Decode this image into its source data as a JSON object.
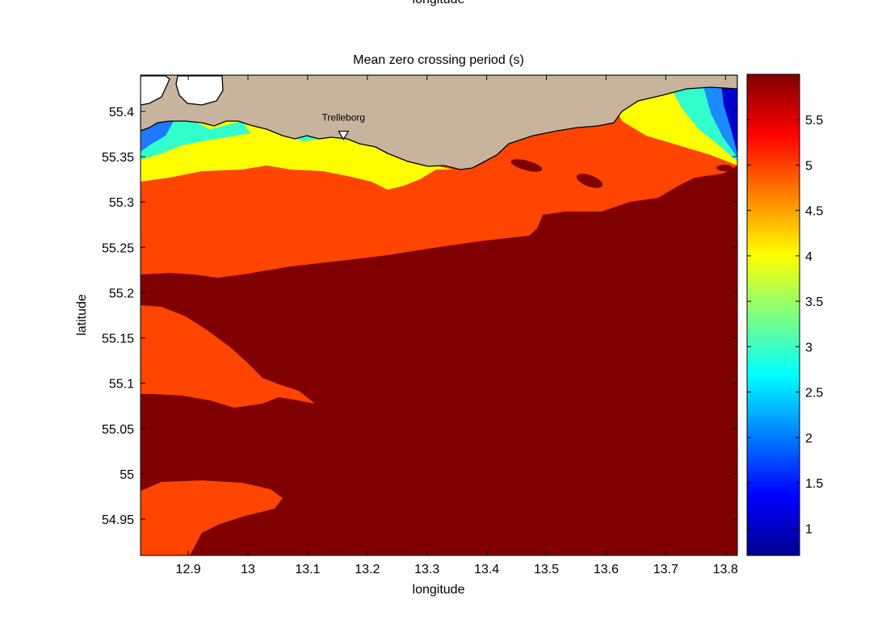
{
  "top_clipped_label": "longitude",
  "chart_data": {
    "type": "heatmap",
    "title": "Mean zero crossing period (s)",
    "xlabel": "longitude",
    "ylabel": "latitude",
    "xlim": [
      12.82,
      13.82
    ],
    "ylim": [
      54.91,
      55.44
    ],
    "x_ticks": [
      12.9,
      13,
      13.1,
      13.2,
      13.3,
      13.4,
      13.5,
      13.6,
      13.7,
      13.8
    ],
    "x_tick_labels": [
      "12.9",
      "13",
      "13.1",
      "13.2",
      "13.3",
      "13.4",
      "13.5",
      "13.6",
      "13.7",
      "13.8"
    ],
    "y_ticks": [
      54.95,
      55,
      55.05,
      55.1,
      55.15,
      55.2,
      55.25,
      55.3,
      55.35,
      55.4
    ],
    "y_tick_labels": [
      "54.95",
      "55",
      "55.05",
      "55.1",
      "55.15",
      "55.2",
      "55.25",
      "55.3",
      "55.35",
      "55.4"
    ],
    "grid": false,
    "colorbar": {
      "range": [
        0.7,
        6.0
      ],
      "ticks": [
        1,
        1.5,
        2,
        2.5,
        3,
        3.5,
        4,
        4.5,
        5,
        5.5
      ],
      "tick_labels": [
        "1",
        "1.5",
        "2",
        "2.5",
        "3",
        "3.5",
        "4",
        "4.5",
        "5",
        "5.5"
      ],
      "colormap": "jet"
    },
    "annotations": [
      {
        "text": "Trelleborg",
        "lon": 13.16,
        "lat": 55.37,
        "marker": "inverted-triangle"
      }
    ],
    "colors": {
      "land": "#c8b49c",
      "coast": "#000000",
      "band_5_5": "#ff4500",
      "band_6": "#800000",
      "band_4": "#ffff00"
    }
  }
}
